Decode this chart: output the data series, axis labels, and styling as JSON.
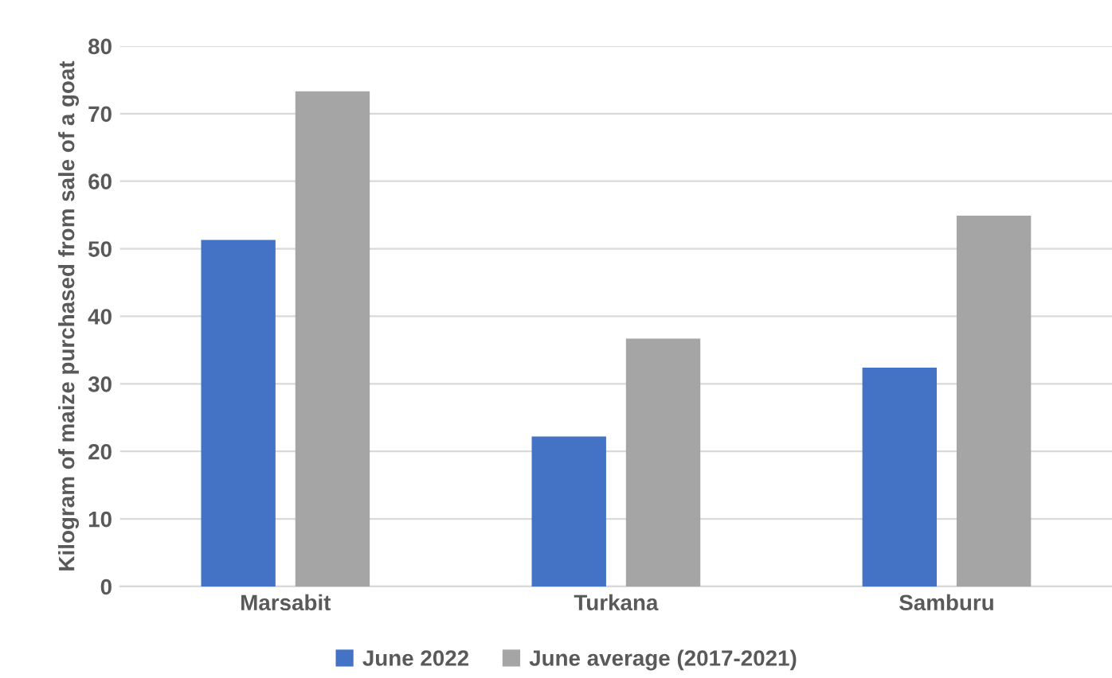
{
  "chart_data": {
    "type": "bar",
    "ylabel": "Kilogram of maize purchased from sale of a goat",
    "categories": [
      "Marsabit",
      "Turkana",
      "Samburu"
    ],
    "series": [
      {
        "name": "June 2022",
        "color": "#4472c4",
        "values": [
          51.3,
          22.2,
          32.4
        ]
      },
      {
        "name": "June average (2017-2021)",
        "color": "#a5a5a5",
        "values": [
          73.3,
          36.7,
          54.9
        ]
      }
    ],
    "ylim": [
      0,
      80
    ],
    "yticks": [
      0,
      10,
      20,
      30,
      40,
      50,
      60,
      70,
      80
    ],
    "grid": "y",
    "legend": "bottom"
  }
}
